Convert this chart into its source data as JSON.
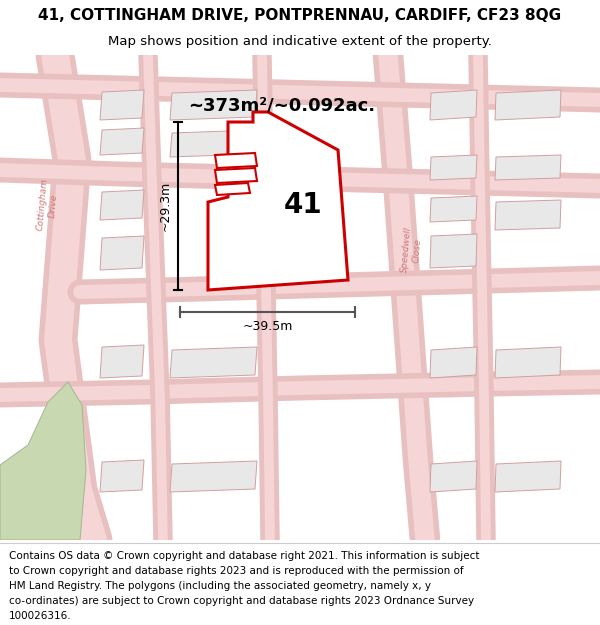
{
  "title": "41, COTTINGHAM DRIVE, PONTPRENNAU, CARDIFF, CF23 8QG",
  "subtitle": "Map shows position and indicative extent of the property.",
  "area_text": "~373m²/~0.092ac.",
  "label_41": "41",
  "dim_width": "~39.5m",
  "dim_height": "~29.3m",
  "footer_lines": [
    "Contains OS data © Crown copyright and database right 2021. This information is subject",
    "to Crown copyright and database rights 2023 and is reproduced with the permission of",
    "HM Land Registry. The polygons (including the associated geometry, namely x, y",
    "co-ordinates) are subject to Crown copyright and database rights 2023 Ordnance Survey",
    "100026316."
  ],
  "map_bg": "#f7f2f2",
  "property_fill": "#ffffff",
  "property_edge": "#cc0000",
  "building_fill": "#e8e8e8",
  "building_edge": "#d0a0a0",
  "green_fill": "#c8d8b0",
  "road_outer": "#e8c0c0",
  "road_inner": "#f5d5d5",
  "title_fontsize": 11,
  "subtitle_fontsize": 9.5,
  "footer_fontsize": 7.5
}
